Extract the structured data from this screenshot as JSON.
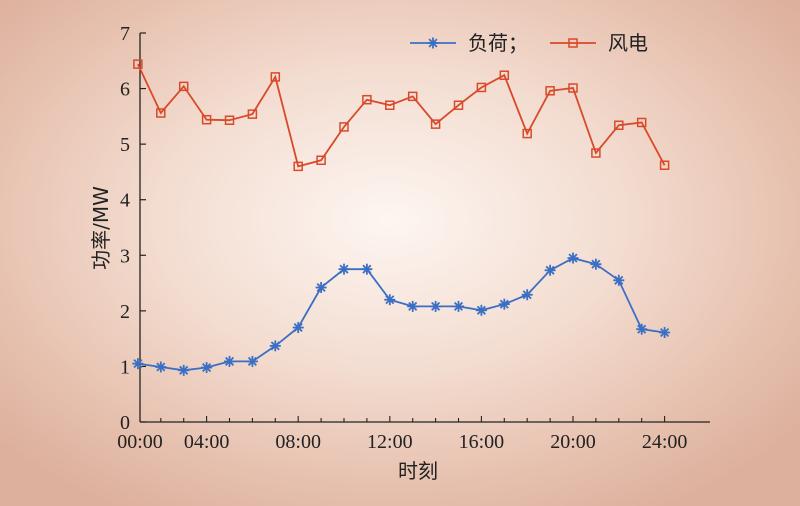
{
  "chart_data": {
    "type": "line",
    "xlabel": "时刻",
    "ylabel": "功率/MW",
    "ylim": [
      0,
      7
    ],
    "xlim": [
      0,
      24
    ],
    "yticks": [
      "0",
      "1",
      "2",
      "3",
      "4",
      "5",
      "6",
      "7"
    ],
    "xticks": [
      "00:00",
      "04:00",
      "08:00",
      "12:00",
      "16:00",
      "20:00",
      "24:00"
    ],
    "grid": false,
    "legend_position": "top-right",
    "series": [
      {
        "name": "负荷；",
        "color": "#3b6fc4",
        "marker": "asterisk",
        "x": [
          1,
          2,
          3,
          4,
          5,
          6,
          7,
          8,
          9,
          10,
          11,
          12,
          13,
          14,
          15,
          16,
          17,
          18,
          19,
          20,
          21,
          22,
          23,
          24
        ],
        "values": [
          1.05,
          0.99,
          0.93,
          0.98,
          1.09,
          1.09,
          1.37,
          1.7,
          2.42,
          2.75,
          2.75,
          2.2,
          2.08,
          2.08,
          2.08,
          2.01,
          2.12,
          2.29,
          2.73,
          2.95,
          2.84,
          2.55,
          1.67,
          1.61
        ]
      },
      {
        "name": "风电",
        "color": "#d84a2a",
        "marker": "square",
        "x": [
          1,
          2,
          3,
          4,
          5,
          6,
          7,
          8,
          9,
          10,
          11,
          12,
          13,
          14,
          15,
          16,
          17,
          18,
          19,
          20,
          21,
          22,
          23,
          24
        ],
        "values": [
          6.44,
          5.56,
          6.04,
          5.44,
          5.43,
          5.54,
          6.21,
          4.6,
          4.71,
          5.31,
          5.8,
          5.7,
          5.86,
          5.36,
          5.7,
          6.02,
          6.24,
          5.19,
          5.96,
          6.01,
          4.84,
          5.34,
          5.39,
          4.62
        ]
      }
    ]
  }
}
